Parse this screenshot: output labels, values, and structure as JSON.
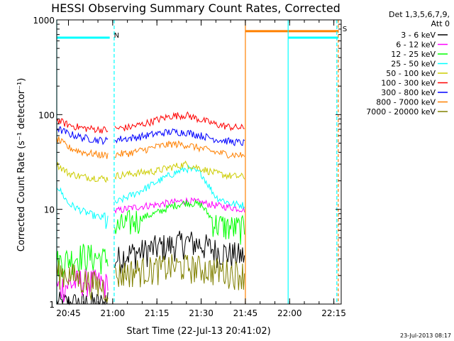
{
  "chart_data": {
    "type": "line",
    "title": "HESSI Observing Summary Count Rates, Corrected",
    "xlabel": "Start Time (22-Jul-13 20:41:02)",
    "ylabel": "Corrected Count Rate (s⁻¹ detector⁻¹)",
    "footer": "23-Jul-2013 08:17",
    "y_scale": "log",
    "ylim": [
      1,
      1000
    ],
    "xlim": [
      "20:41:02",
      "22:17:30"
    ],
    "x_ticks": [
      "20:45",
      "21:00",
      "21:15",
      "21:30",
      "21:45",
      "22:00",
      "22:15"
    ],
    "y_ticks": [
      "1",
      "10",
      "100",
      "1000"
    ],
    "grid": false,
    "legend_position": "right",
    "legend_header": [
      "Det 1,3,5,6,7,9,",
      "Att 0"
    ],
    "gap": {
      "start": "20:58:30",
      "end": "21:00:30"
    },
    "data_end": "21:45:00",
    "series": [
      {
        "name": "3 - 6 keV",
        "color": "#000000",
        "x": [
          "20:41:02",
          "20:58:00",
          "21:00:30",
          "21:05:00",
          "21:10:00",
          "21:15:00",
          "21:20:00",
          "21:25:00",
          "21:30:00",
          "21:35:00",
          "21:40:00",
          "21:45:00"
        ],
        "values": [
          1,
          1,
          2.9,
          3.4,
          3.6,
          4,
          4.2,
          4.6,
          4.3,
          3.7,
          3.4,
          3.2
        ]
      },
      {
        "name": "6 - 12 keV",
        "color": "#ff00ff",
        "x": [
          "20:41:02",
          "20:45:00",
          "20:50:00",
          "20:55:00",
          "20:58:00",
          "21:00:30",
          "21:05:00",
          "21:10:00",
          "21:15:00",
          "21:20:00",
          "21:25:00",
          "21:30:00",
          "21:35:00",
          "21:40:00",
          "21:45:00"
        ],
        "values": [
          1.5,
          1.6,
          1.8,
          1.7,
          1.6,
          9.5,
          10.2,
          10.8,
          11.2,
          11.8,
          12.3,
          11.8,
          11,
          10.5,
          10
        ]
      },
      {
        "name": "12 - 25 keV",
        "color": "#00ff00",
        "x": [
          "20:41:02",
          "20:45:00",
          "20:50:00",
          "20:55:00",
          "20:58:00",
          "21:00:30",
          "21:05:00",
          "21:10:00",
          "21:15:00",
          "21:20:00",
          "21:25:00",
          "21:30:00",
          "21:35:00",
          "21:40:00",
          "21:45:00"
        ],
        "values": [
          2.8,
          3,
          3.3,
          3.1,
          3,
          6.2,
          7.2,
          8.2,
          9.2,
          10.8,
          11.8,
          11.2,
          7,
          6.5,
          6.3
        ]
      },
      {
        "name": "25 - 50 keV",
        "color": "#00ffff",
        "x": [
          "20:41:02",
          "20:45:00",
          "20:50:00",
          "20:55:00",
          "20:58:00",
          "21:00:30",
          "21:05:00",
          "21:10:00",
          "21:15:00",
          "21:20:00",
          "21:25:00",
          "21:30:00",
          "21:35:00",
          "21:40:00",
          "21:45:00"
        ],
        "values": [
          18,
          11.5,
          9.5,
          8.3,
          7.8,
          11.5,
          13.5,
          16,
          19.5,
          23.5,
          27,
          24,
          13.5,
          11.5,
          11
        ]
      },
      {
        "name": "50 - 100 keV",
        "color": "#cccc00",
        "x": [
          "20:41:02",
          "20:45:00",
          "20:50:00",
          "20:55:00",
          "20:58:00",
          "21:00:30",
          "21:05:00",
          "21:10:00",
          "21:15:00",
          "21:20:00",
          "21:25:00",
          "21:30:00",
          "21:35:00",
          "21:40:00",
          "21:45:00"
        ],
        "values": [
          30,
          24,
          22,
          21.5,
          21,
          22.5,
          23.5,
          24.5,
          25.5,
          28,
          30,
          27,
          24,
          22.5,
          22
        ]
      },
      {
        "name": "100 - 300 keV",
        "color": "#ff0000",
        "x": [
          "20:41:02",
          "20:45:00",
          "20:50:00",
          "20:55:00",
          "20:58:00",
          "21:00:30",
          "21:05:00",
          "21:10:00",
          "21:15:00",
          "21:20:00",
          "21:25:00",
          "21:30:00",
          "21:35:00",
          "21:40:00",
          "21:45:00"
        ],
        "values": [
          88,
          78,
          72,
          70,
          69,
          71,
          73,
          79,
          88,
          97,
          99,
          88,
          79,
          74,
          72
        ]
      },
      {
        "name": "300 - 800 keV",
        "color": "#0000ff",
        "x": [
          "20:41:02",
          "20:45:00",
          "20:50:00",
          "20:55:00",
          "20:58:00",
          "21:00:30",
          "21:05:00",
          "21:10:00",
          "21:15:00",
          "21:20:00",
          "21:25:00",
          "21:30:00",
          "21:35:00",
          "21:40:00",
          "21:45:00"
        ],
        "values": [
          72,
          63,
          57,
          54,
          53,
          55,
          56,
          59,
          63,
          66,
          65,
          60,
          55,
          52,
          50
        ]
      },
      {
        "name": "800 - 7000 keV",
        "color": "#ff8000",
        "x": [
          "20:41:02",
          "20:45:00",
          "20:50:00",
          "20:55:00",
          "20:58:00",
          "21:00:30",
          "21:05:00",
          "21:10:00",
          "21:15:00",
          "21:20:00",
          "21:25:00",
          "21:30:00",
          "21:35:00",
          "21:40:00",
          "21:45:00"
        ],
        "values": [
          56,
          45,
          40,
          38,
          37,
          38,
          39,
          42,
          46,
          49,
          48,
          44,
          40,
          38,
          37
        ]
      },
      {
        "name": "7000 - 20000 keV",
        "color": "#808000",
        "x": [
          "20:41:02",
          "20:45:00",
          "20:50:00",
          "20:55:00",
          "20:58:00",
          "21:00:30",
          "21:05:00",
          "21:10:00",
          "21:15:00",
          "21:20:00",
          "21:25:00",
          "21:30:00",
          "21:35:00",
          "21:40:00",
          "21:45:00"
        ],
        "values": [
          2.2,
          2.1,
          1.8,
          1.6,
          1.5,
          2,
          2.2,
          2.3,
          2.4,
          2.5,
          2.5,
          2.4,
          2.3,
          2.2,
          2.1
        ]
      }
    ],
    "flags": [
      {
        "label": "N",
        "color": "#00ffff",
        "start": "20:41:02",
        "end": "20:59:00",
        "level": 650
      },
      {
        "label": "",
        "color": "#00ffff",
        "start": "21:59:30",
        "end": "22:16:30",
        "level": 650
      },
      {
        "label": "S",
        "color": "#ff8000",
        "start": "21:45:00",
        "end": "22:16:30",
        "level": 760
      }
    ]
  }
}
